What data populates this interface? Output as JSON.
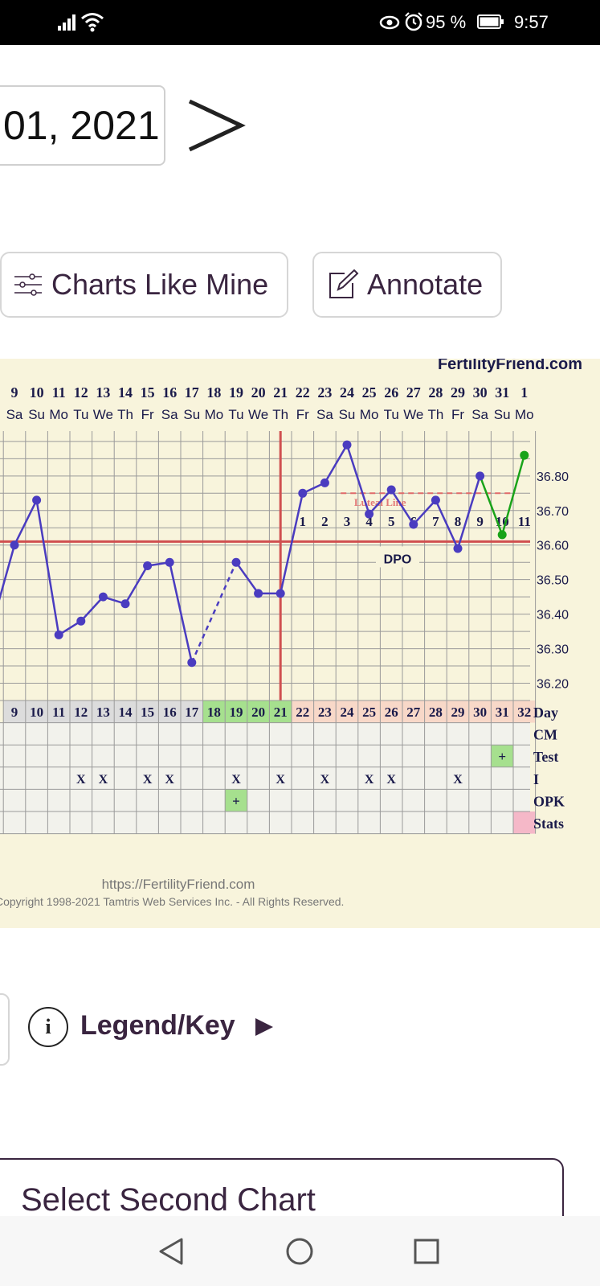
{
  "status": {
    "battery": "95 %",
    "time": "9:57"
  },
  "date_text": "01, 2021",
  "buttons": {
    "charts_like_mine": "Charts Like Mine",
    "annotate": "Annotate"
  },
  "chart": {
    "brand": "FertilityFriend.com",
    "date_numbers": [
      "9",
      "10",
      "11",
      "12",
      "13",
      "14",
      "15",
      "16",
      "17",
      "18",
      "19",
      "20",
      "21",
      "22",
      "23",
      "24",
      "25",
      "26",
      "27",
      "28",
      "29",
      "30",
      "31",
      "1"
    ],
    "weekdays": [
      "Sa",
      "Su",
      "Mo",
      "Tu",
      "We",
      "Th",
      "Fr",
      "Sa",
      "Su",
      "Mo",
      "Tu",
      "We",
      "Th",
      "Fr",
      "Sa",
      "Su",
      "Mo",
      "Tu",
      "We",
      "Th",
      "Fr",
      "Sa",
      "Su",
      "Mo"
    ],
    "y_ticks": [
      "36.80",
      "36.70",
      "36.60",
      "36.50",
      "36.40",
      "36.30",
      "36.20"
    ],
    "dpo_numbers": [
      "1",
      "2",
      "3",
      "4",
      "5",
      "6",
      "7",
      "8",
      "9",
      "10",
      "11"
    ],
    "dpo_label": "DPO",
    "luteal_label": "Luteal Line",
    "cycle_days": [
      "9",
      "10",
      "11",
      "12",
      "13",
      "14",
      "15",
      "16",
      "17",
      "18",
      "19",
      "20",
      "21",
      "22",
      "23",
      "24",
      "25",
      "26",
      "27",
      "28",
      "29",
      "30",
      "31",
      "32"
    ],
    "row_labels": [
      "Day",
      "CM",
      "Test",
      "I",
      "OPK",
      "Stats"
    ],
    "intercourse_mark": "X",
    "plus_mark": "+",
    "footer_url": "https://FertilityFriend.com",
    "copyright": "Copyright 1998-2021 Tamtris Web Services Inc. - All Rights Reserved.",
    "colors": {
      "background": "#f8f4dc",
      "temp_line": "#4a3cc0",
      "green_line": "#19a319",
      "coverline": "#d05050",
      "fertile_green": "#a6e08e",
      "luteal_pink": "#f8d8c8",
      "pre_gray": "#dcdcdc"
    }
  },
  "chart_data": {
    "type": "line",
    "x": [
      "9",
      "10",
      "11",
      "12",
      "13",
      "14",
      "15",
      "16",
      "17",
      "18",
      "19",
      "20",
      "21",
      "22",
      "23",
      "24",
      "25",
      "26",
      "27",
      "28",
      "29",
      "30",
      "31",
      "32"
    ],
    "series": [
      {
        "values": [
          36.6,
          36.73,
          36.34,
          36.38,
          36.45,
          36.43,
          36.54,
          36.55,
          36.26,
          null,
          36.55,
          36.46,
          36.46,
          36.75,
          36.78,
          36.89,
          36.69,
          36.76,
          36.66,
          36.73,
          36.59,
          36.8,
          36.63,
          36.86
        ]
      }
    ],
    "coverline": 36.61,
    "ovulation_day": 21,
    "ylim": [
      36.15,
      36.93
    ],
    "intercourse_days": [
      12,
      13,
      15,
      16,
      19,
      21,
      23,
      25,
      26,
      29
    ],
    "opk_positive_days": [
      19
    ],
    "test_positive_days": [
      31
    ],
    "grid": true
  },
  "legend": {
    "info_glyph": "i",
    "label": "Legend/Key"
  },
  "second_chart": "Select Second Chart"
}
